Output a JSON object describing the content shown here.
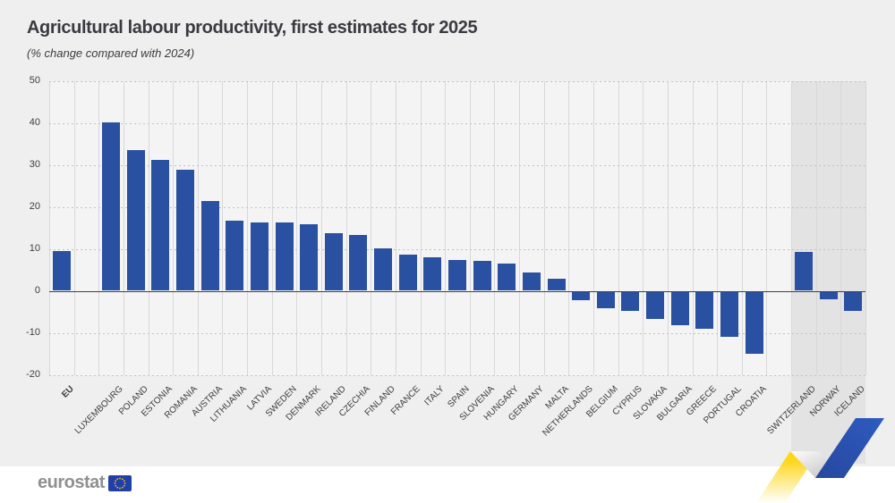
{
  "header": {
    "title": "Agricultural labour productivity, first estimates for 2025",
    "subtitle": "(% change compared with 2024)"
  },
  "footer": {
    "logo_text": "eurostat"
  },
  "colors": {
    "bar": "#2a50a2",
    "panel_background": "#efefef",
    "plot_background": "#f4f4f4",
    "non_eu_shading": "#e3e3e3",
    "zero_line": "#3f3f3f",
    "ribbon_yellow": "#ffd617",
    "ribbon_blue": "#2b52ad",
    "eu_flag_blue": "#2040a8",
    "eu_flag_stars": "#ffcc00"
  },
  "chart_data": {
    "type": "bar",
    "title": "Agricultural labour productivity, first estimates for 2025",
    "subtitle": "(% change compared with 2024)",
    "unit": "% change compared with 2024",
    "xlabel": "",
    "ylabel": "",
    "ylim": [
      -20,
      50
    ],
    "yticks": [
      50,
      40,
      30,
      20,
      10,
      0,
      -10,
      -20
    ],
    "grid": "horizontal dotted lines, vertical column separators",
    "legend": "none",
    "categories": [
      "EU",
      "LUXEMBOURG",
      "POLAND",
      "ESTONIA",
      "ROMANIA",
      "AUSTRIA",
      "LITHUANIA",
      "LATVIA",
      "SWEDEN",
      "DENMARK",
      "IRELAND",
      "CZECHIA",
      "FINLAND",
      "FRANCE",
      "ITALY",
      "SPAIN",
      "SLOVENIA",
      "HUNGARY",
      "GERMANY",
      "MALTA",
      "NETHERLANDS",
      "BELGIUM",
      "CYPRUS",
      "SLOVAKIA",
      "BULGARIA",
      "GREECE",
      "PORTUGAL",
      "CROATIA",
      "SWITZERLAND",
      "NORWAY",
      "ICELAND"
    ],
    "values": [
      9.5,
      40.2,
      33.5,
      31.2,
      28.8,
      21.4,
      16.8,
      16.3,
      16.2,
      15.8,
      13.7,
      13.3,
      10.2,
      8.6,
      7.9,
      7.3,
      7.2,
      6.4,
      4.4,
      2.8,
      -2.1,
      -3.9,
      -4.6,
      -6.5,
      -7.9,
      -8.8,
      -10.8,
      -14.8,
      9.2,
      -1.8,
      -4.5
    ],
    "groups": [
      "aggregate",
      "member",
      "member",
      "member",
      "member",
      "member",
      "member",
      "member",
      "member",
      "member",
      "member",
      "member",
      "member",
      "member",
      "member",
      "member",
      "member",
      "member",
      "member",
      "member",
      "member",
      "member",
      "member",
      "member",
      "member",
      "member",
      "member",
      "member",
      "non-eu",
      "non-eu",
      "non-eu"
    ],
    "notes": "EU bar separated by a gap from member states; Switzerland, Norway and Iceland shown on a shaded band separated by a gap"
  }
}
